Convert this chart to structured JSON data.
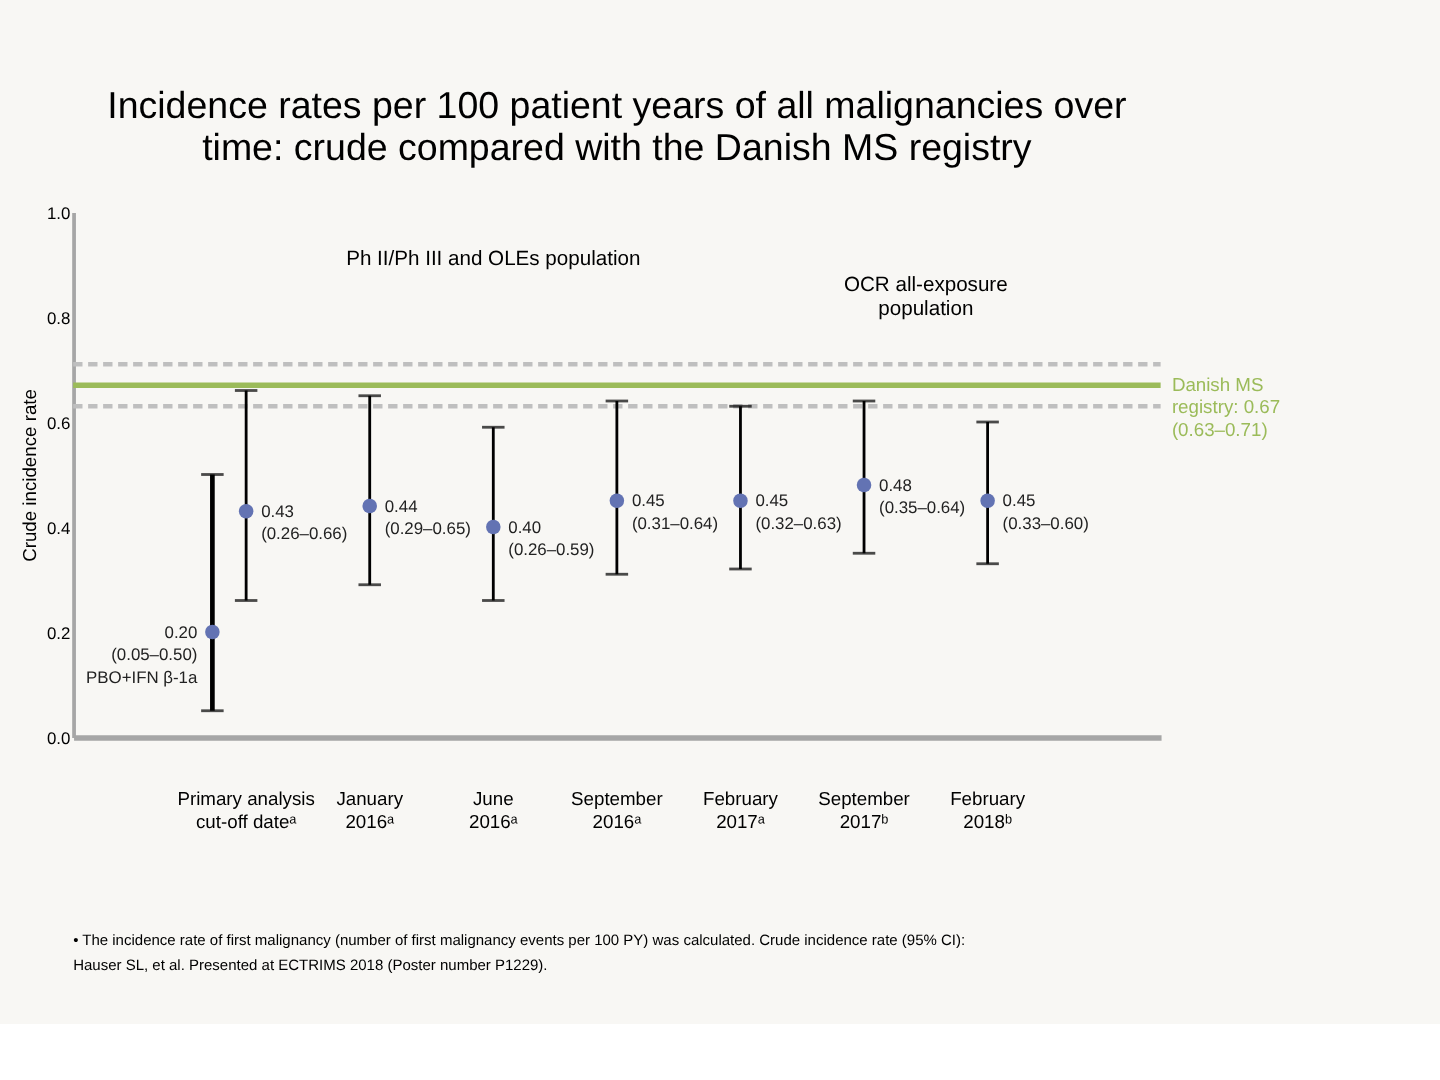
{
  "chart_data": {
    "type": "scatter",
    "title": "Incidence rates per 100 patient years of all malignancies over\ntime: crude compared with the Danish MS registry",
    "ylabel": "Crude incidence rate",
    "categories": [
      "Primary analysis\ncut-off dateᵃ",
      "January\n2016ᵃ",
      "June\n2016ᵃ",
      "September\n2016ᵃ",
      "February\n2017ᵃ",
      "September\n2017ᵇ",
      "February\n2018ᵇ"
    ],
    "series": [
      {
        "color": "#6373b3",
        "values": [
          0.43,
          0.44,
          0.4,
          0.45,
          0.45,
          0.48,
          0.45
        ],
        "errors": [
          [
            0.26,
            0.66
          ],
          [
            0.29,
            0.65
          ],
          [
            0.26,
            0.59
          ],
          [
            0.31,
            0.64
          ],
          [
            0.32,
            0.63
          ],
          [
            0.35,
            0.64
          ],
          [
            0.33,
            0.6
          ]
        ],
        "value_labels": [
          "0.43\n(0.26–0.66)",
          "0.44\n(0.29–0.65)",
          "0.40\n(0.26–0.59)",
          "0.45\n(0.31–0.64)",
          "0.45\n(0.32–0.63)",
          "0.48\n(0.35–0.64)",
          "0.45\n(0.33–0.60)"
        ]
      },
      {
        "name": "PBO+IFN β-1a",
        "color": "#6373b3",
        "values": [
          0.2,
          null,
          null,
          null,
          null,
          null,
          null
        ],
        "errors": [
          [
            0.05,
            0.5
          ],
          null,
          null,
          null,
          null,
          null,
          null
        ],
        "value_labels": [
          "0.20\n(0.05–0.50)",
          null,
          null,
          null,
          null,
          null,
          null
        ]
      }
    ],
    "ylim": [
      0,
      1
    ],
    "yticks": [
      {
        "value": 0,
        "label": "0.0"
      },
      0.2,
      0.4,
      0.6,
      0.8,
      {
        "value": 1,
        "label": "1.0"
      }
    ],
    "ref_lines": [
      {
        "axis": "y",
        "value": 0.67,
        "label": "Danish MS\nregistry: 0.67\n(0.63–0.71)",
        "color": "#9bbb59"
      },
      {
        "axis": "y",
        "value": 0.63,
        "color": "#bfbfbf",
        "line_style": "dashed"
      },
      {
        "axis": "y",
        "value": 0.71,
        "color": "#bfbfbf",
        "line_style": "dashed"
      }
    ],
    "annotations": [
      "Ph II/Ph III and OLEs population",
      "OCR all-exposure\npopulation",
      "•   The incidence rate of first malignancy (number of first malignancy events per 100 PY) was calculated. Crude incidence rate (95% CI):\n     Hauser SL, et al. Presented at ECTRIMS 2018 (Poster number P1229)."
    ],
    "marker": "circle",
    "grid": false
  }
}
